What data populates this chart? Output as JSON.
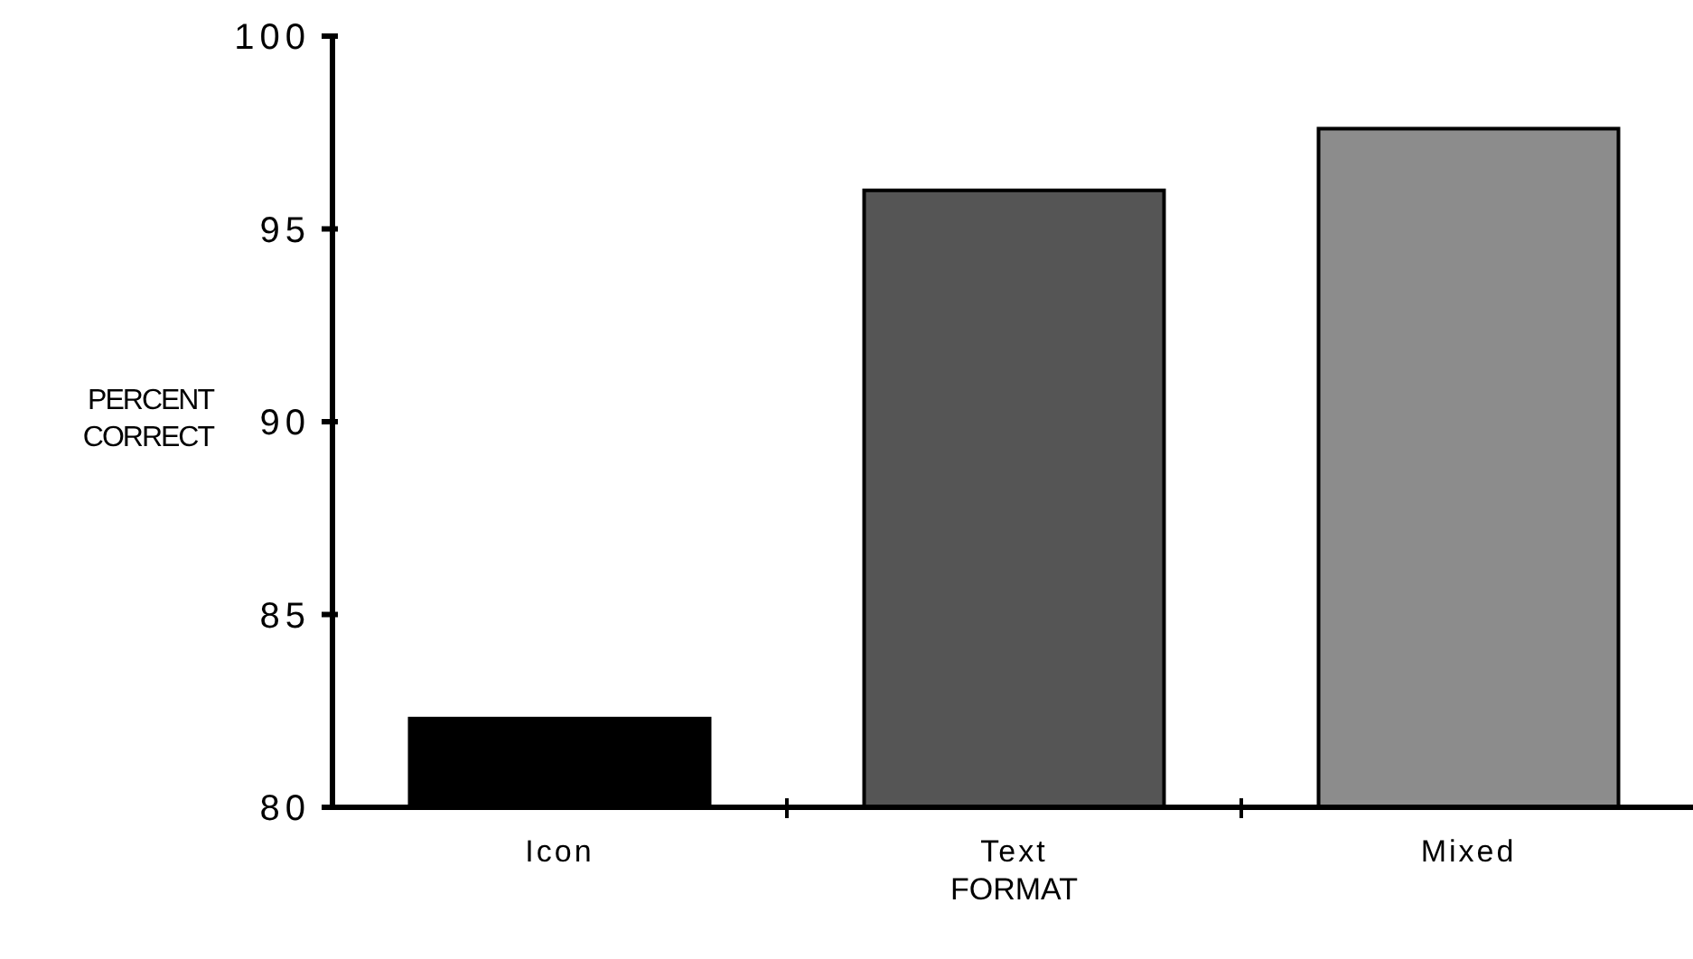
{
  "chart_data": {
    "type": "bar",
    "xlabel": "FORMAT",
    "ylabel": "PERCENT CORRECT",
    "categories": [
      "Icon",
      "Text",
      "Mixed"
    ],
    "values": [
      82.3,
      96.0,
      97.6
    ],
    "colors": [
      "#000000",
      "#555555",
      "#8c8c8c"
    ],
    "ylim": [
      80,
      100
    ],
    "yticks": [
      80,
      85,
      90,
      95,
      100
    ],
    "grid": false
  }
}
